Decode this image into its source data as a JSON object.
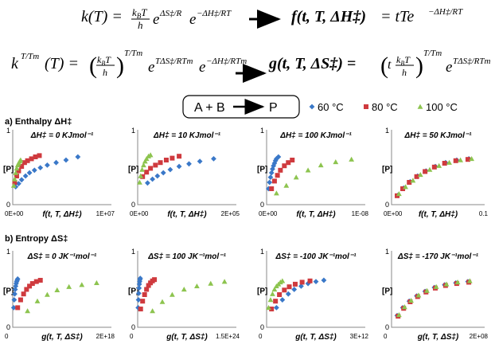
{
  "equations": {
    "row1_left": {
      "lhs": "k(T) =",
      "kB": "k",
      "kB_sub": "B",
      "T": "T",
      "h": "h",
      "exp1": "ΔS‡/R",
      "exp2": "−ΔH‡/RT",
      "e": "e"
    },
    "row1_right": {
      "lhs": "f(t, T, ΔH‡)",
      "rhs": "= tTe",
      "exp": "−ΔH‡/RT"
    },
    "row2_left": {
      "lhs_base": "k",
      "lhs_exp": "T/Tm",
      "lhs_arg": "(T) =",
      "inner": "kBT / h",
      "outer_exp": "T/Tm",
      "exp1": "TΔS‡/RTm",
      "exp2": "−ΔH‡/RTm"
    },
    "row2_right": {
      "lhs": "g(t, T, ΔS‡) =",
      "inner": "t kBT / h",
      "outer_exp": "T/Tm",
      "exp": "TΔS‡/RTm"
    }
  },
  "reaction": {
    "text": "A + B",
    "product": "P"
  },
  "legend": [
    {
      "label": "60 °C",
      "color": "#3a78c8",
      "marker": "diamond"
    },
    {
      "label": "80 °C",
      "color": "#cf3a3e",
      "marker": "square"
    },
    {
      "label": "100 °C",
      "color": "#8dc44f",
      "marker": "triangle"
    }
  ],
  "section_a": {
    "label": "a) Enthalpy ΔH‡"
  },
  "section_b": {
    "label": "b) Entropy ΔS‡"
  },
  "chart_data": [
    {
      "type": "scatter",
      "panel": "a1",
      "title": "ΔH‡ = 0 KJmol⁻¹",
      "ylabel": "[P]",
      "xlabel": "f(t, T, ΔH‡)",
      "xtick_left": "0E+00",
      "xtick_right": "1E+07",
      "ytick_top": "1",
      "ytick_bottom": "0",
      "xlim": [
        0,
        1
      ],
      "ylim": [
        0,
        1
      ],
      "series": [
        {
          "name": "60 °C",
          "x": [
            0.03,
            0.06,
            0.09,
            0.13,
            0.17,
            0.22,
            0.28,
            0.35,
            0.44,
            0.54,
            0.66
          ],
          "y": [
            0.28,
            0.33,
            0.39,
            0.45,
            0.5,
            0.54,
            0.58,
            0.62,
            0.66,
            0.7,
            0.75
          ]
        },
        {
          "name": "80 °C",
          "x": [
            0.02,
            0.04,
            0.06,
            0.09,
            0.12,
            0.15,
            0.19,
            0.23,
            0.27
          ],
          "y": [
            0.35,
            0.45,
            0.53,
            0.6,
            0.66,
            0.69,
            0.72,
            0.75,
            0.77
          ]
        },
        {
          "name": "100 °C",
          "x": [
            0.01,
            0.02,
            0.03,
            0.04,
            0.05,
            0.06,
            0.07,
            0.08
          ],
          "y": [
            0.3,
            0.4,
            0.5,
            0.57,
            0.62,
            0.65,
            0.68,
            0.7
          ]
        }
      ]
    },
    {
      "type": "scatter",
      "panel": "a2",
      "title": "ΔH‡ = 10 KJmol⁻¹",
      "ylabel": "[P]",
      "xlabel": "f(t, T, ΔH‡)",
      "xtick_left": "0E+00",
      "xtick_right": "2E+05",
      "ytick_top": "1",
      "ytick_bottom": "0",
      "xlim": [
        0,
        1
      ],
      "ylim": [
        0,
        1
      ],
      "series": [
        {
          "name": "60 °C",
          "x": [
            0.1,
            0.15,
            0.2,
            0.26,
            0.33,
            0.42,
            0.52,
            0.63,
            0.77
          ],
          "y": [
            0.34,
            0.4,
            0.45,
            0.5,
            0.55,
            0.6,
            0.64,
            0.68,
            0.72
          ]
        },
        {
          "name": "80 °C",
          "x": [
            0.05,
            0.09,
            0.13,
            0.18,
            0.23,
            0.29,
            0.35,
            0.42
          ],
          "y": [
            0.44,
            0.51,
            0.57,
            0.62,
            0.66,
            0.7,
            0.73,
            0.76
          ]
        },
        {
          "name": "100 °C",
          "x": [
            0.02,
            0.03,
            0.045,
            0.06,
            0.075,
            0.09,
            0.11,
            0.13
          ],
          "y": [
            0.35,
            0.45,
            0.55,
            0.62,
            0.68,
            0.72,
            0.76,
            0.78
          ]
        }
      ]
    },
    {
      "type": "scatter",
      "panel": "a3",
      "title": "ΔH‡ = 100 KJmol⁻¹",
      "ylabel": "[P]",
      "xlabel": "f(t, T, ΔH‡)",
      "xtick_left": "0E+00",
      "xtick_right": "1E-08",
      "ytick_top": "1",
      "ytick_bottom": "0",
      "xlim": [
        0,
        1
      ],
      "ylim": [
        0,
        1
      ],
      "series": [
        {
          "name": "60 °C",
          "x": [
            0.02,
            0.03,
            0.04,
            0.05,
            0.06,
            0.07,
            0.08,
            0.09,
            0.1,
            0.12
          ],
          "y": [
            0.25,
            0.35,
            0.43,
            0.5,
            0.56,
            0.61,
            0.65,
            0.69,
            0.72,
            0.75
          ]
        },
        {
          "name": "80 °C",
          "x": [
            0.05,
            0.08,
            0.11,
            0.14,
            0.18,
            0.22,
            0.26
          ],
          "y": [
            0.25,
            0.37,
            0.46,
            0.54,
            0.61,
            0.66,
            0.7
          ]
        },
        {
          "name": "100 °C",
          "x": [
            0.1,
            0.2,
            0.3,
            0.42,
            0.55,
            0.7,
            0.86
          ],
          "y": [
            0.18,
            0.3,
            0.43,
            0.54,
            0.62,
            0.67,
            0.71
          ]
        }
      ]
    },
    {
      "type": "scatter",
      "panel": "a4",
      "title": "ΔH‡ = 50 KJmol⁻¹",
      "ylabel": "[P]",
      "xlabel": "f(t, T, ΔH‡)",
      "xtick_left": "0E+00",
      "xtick_right": "0.1",
      "ytick_top": "1",
      "ytick_bottom": "0",
      "xlim": [
        0,
        1
      ],
      "ylim": [
        0,
        1
      ],
      "series": [
        {
          "name": "60 °C",
          "x": [
            0.07,
            0.13,
            0.2,
            0.28,
            0.37,
            0.47,
            0.58,
            0.7,
            0.83
          ],
          "y": [
            0.15,
            0.26,
            0.36,
            0.45,
            0.53,
            0.6,
            0.66,
            0.7,
            0.72
          ]
        },
        {
          "name": "80 °C",
          "x": [
            0.06,
            0.12,
            0.19,
            0.27,
            0.36,
            0.46,
            0.57,
            0.69,
            0.82
          ],
          "y": [
            0.14,
            0.25,
            0.35,
            0.44,
            0.52,
            0.59,
            0.65,
            0.69,
            0.71
          ]
        },
        {
          "name": "100 °C",
          "x": [
            0.08,
            0.15,
            0.23,
            0.31,
            0.41,
            0.51,
            0.62,
            0.74,
            0.86
          ],
          "y": [
            0.17,
            0.28,
            0.38,
            0.47,
            0.55,
            0.61,
            0.66,
            0.7,
            0.72
          ]
        }
      ]
    },
    {
      "type": "scatter",
      "panel": "b1",
      "title": "ΔS‡ = 0 JK⁻¹mol⁻¹",
      "ylabel": "[P]",
      "xlabel": "g(t, T, ΔS‡)",
      "xtick_left": "0",
      "xtick_right": "2E+18",
      "ytick_top": "1",
      "ytick_bottom": "0",
      "xlim": [
        0,
        1
      ],
      "ylim": [
        0,
        1
      ],
      "series": [
        {
          "name": "60 °C",
          "x": [
            0.01,
            0.015,
            0.02,
            0.025,
            0.03,
            0.035,
            0.04,
            0.045,
            0.05
          ],
          "y": [
            0.3,
            0.42,
            0.51,
            0.58,
            0.63,
            0.67,
            0.7,
            0.72,
            0.74
          ]
        },
        {
          "name": "80 °C",
          "x": [
            0.05,
            0.08,
            0.11,
            0.14,
            0.17,
            0.2,
            0.24,
            0.28
          ],
          "y": [
            0.3,
            0.42,
            0.51,
            0.58,
            0.63,
            0.67,
            0.7,
            0.72
          ]
        },
        {
          "name": "100 °C",
          "x": [
            0.15,
            0.25,
            0.35,
            0.45,
            0.57,
            0.7,
            0.85
          ],
          "y": [
            0.25,
            0.4,
            0.5,
            0.57,
            0.62,
            0.65,
            0.68
          ]
        }
      ]
    },
    {
      "type": "scatter",
      "panel": "b2",
      "title": "ΔS‡ = 100 JK⁻¹mol⁻¹",
      "ylabel": "[P]",
      "xlabel": "g(t, T, ΔS‡)",
      "xtick_left": "0",
      "xtick_right": "1.5E+24",
      "ytick_top": "1",
      "ytick_bottom": "0",
      "xlim": [
        0,
        1
      ],
      "ylim": [
        0,
        1
      ],
      "series": [
        {
          "name": "60 °C",
          "x": [
            0.005,
            0.008,
            0.011,
            0.014,
            0.017,
            0.02,
            0.023,
            0.026
          ],
          "y": [
            0.3,
            0.42,
            0.52,
            0.6,
            0.66,
            0.7,
            0.73,
            0.75
          ]
        },
        {
          "name": "80 °C",
          "x": [
            0.03,
            0.05,
            0.07,
            0.09,
            0.11,
            0.13,
            0.15,
            0.17
          ],
          "y": [
            0.28,
            0.4,
            0.5,
            0.58,
            0.64,
            0.68,
            0.71,
            0.73
          ]
        },
        {
          "name": "100 °C",
          "x": [
            0.15,
            0.25,
            0.35,
            0.47,
            0.6,
            0.74,
            0.88
          ],
          "y": [
            0.25,
            0.39,
            0.5,
            0.58,
            0.63,
            0.67,
            0.7
          ]
        }
      ]
    },
    {
      "type": "scatter",
      "panel": "b3",
      "title": "ΔS‡ = -100 JK⁻¹mol⁻¹",
      "ylabel": "[P]",
      "xlabel": "g(t, T, ΔS‡)",
      "xtick_left": "0",
      "xtick_right": "3E+12",
      "ytick_top": "1",
      "ytick_bottom": "0",
      "xlim": [
        0,
        1
      ],
      "ylim": [
        0,
        1
      ],
      "series": [
        {
          "name": "60 °C",
          "x": [
            0.1,
            0.16,
            0.22,
            0.28,
            0.35,
            0.42,
            0.5,
            0.58
          ],
          "y": [
            0.3,
            0.42,
            0.51,
            0.58,
            0.63,
            0.67,
            0.7,
            0.72
          ]
        },
        {
          "name": "80 °C",
          "x": [
            0.05,
            0.09,
            0.13,
            0.18,
            0.23,
            0.29,
            0.36,
            0.44
          ],
          "y": [
            0.28,
            0.4,
            0.5,
            0.57,
            0.62,
            0.66,
            0.69,
            0.71
          ]
        },
        {
          "name": "100 °C",
          "x": [
            0.02,
            0.04,
            0.06,
            0.08,
            0.1,
            0.12,
            0.14,
            0.16
          ],
          "y": [
            0.3,
            0.42,
            0.51,
            0.58,
            0.63,
            0.66,
            0.69,
            0.71
          ]
        }
      ]
    },
    {
      "type": "scatter",
      "panel": "b4",
      "title": "ΔS‡ = -170 JK⁻¹mol⁻¹",
      "ylabel": "[P]",
      "xlabel": "g(t, T, ΔS‡)",
      "xtick_left": "0",
      "xtick_right": "2E+08",
      "ytick_top": "1",
      "ytick_bottom": "0",
      "xlim": [
        0,
        1
      ],
      "ylim": [
        0,
        1
      ],
      "series": [
        {
          "name": "60 °C",
          "x": [
            0.06,
            0.12,
            0.19,
            0.27,
            0.36,
            0.46,
            0.57,
            0.69,
            0.82
          ],
          "y": [
            0.18,
            0.3,
            0.4,
            0.48,
            0.55,
            0.61,
            0.65,
            0.68,
            0.7
          ]
        },
        {
          "name": "80 °C",
          "x": [
            0.07,
            0.13,
            0.2,
            0.28,
            0.37,
            0.47,
            0.58,
            0.7,
            0.83
          ],
          "y": [
            0.17,
            0.29,
            0.39,
            0.47,
            0.54,
            0.6,
            0.64,
            0.67,
            0.69
          ]
        },
        {
          "name": "100 °C",
          "x": [
            0.08,
            0.14,
            0.21,
            0.29,
            0.38,
            0.48,
            0.59,
            0.71,
            0.84
          ],
          "y": [
            0.19,
            0.31,
            0.41,
            0.49,
            0.56,
            0.62,
            0.66,
            0.69,
            0.71
          ]
        }
      ]
    }
  ]
}
